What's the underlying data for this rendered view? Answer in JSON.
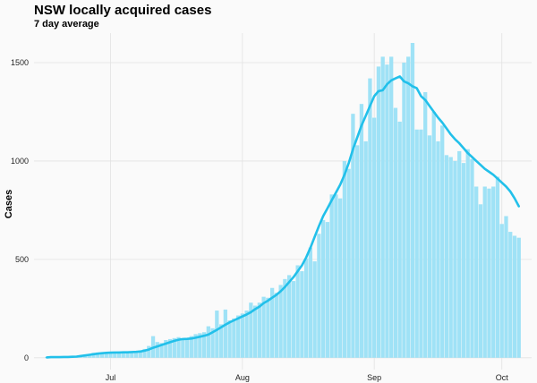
{
  "chart_data": {
    "type": "bar",
    "title": "NSW locally acquired cases",
    "subtitle": "7 day average",
    "xlabel": "",
    "ylabel": "Cases",
    "ylim": [
      -60,
      1650
    ],
    "xlim": [
      "2021-06-13",
      "2021-10-08"
    ],
    "grid": true,
    "colors": {
      "bars": "#9fe2f6",
      "line": "#22c0ea",
      "grid": "#e2e2e2",
      "background": "#fafafa"
    },
    "xticks": [
      {
        "date": "2021-07-01",
        "label": "Jul"
      },
      {
        "date": "2021-08-01",
        "label": "Aug"
      },
      {
        "date": "2021-09-01",
        "label": "Sep"
      },
      {
        "date": "2021-10-01",
        "label": "Oct"
      }
    ],
    "yticks": [
      0,
      500,
      1000,
      1500
    ],
    "start_date": "2021-06-16",
    "series": [
      {
        "name": "Cases",
        "values": [
          3,
          3,
          3,
          3,
          4,
          5,
          6,
          8,
          11,
          15,
          19,
          25,
          27,
          24,
          26,
          28,
          30,
          32,
          29,
          31,
          33,
          35,
          38,
          45,
          60,
          110,
          80,
          75,
          90,
          95,
          100,
          105,
          95,
          100,
          110,
          120,
          125,
          130,
          160,
          150,
          240,
          170,
          245,
          190,
          200,
          215,
          225,
          240,
          280,
          265,
          280,
          310,
          305,
          355,
          330,
          370,
          400,
          420,
          390,
          470,
          440,
          505,
          560,
          490,
          630,
          700,
          690,
          830,
          830,
          810,
          1000,
          960,
          1240,
          1080,
          1290,
          1100,
          1420,
          1220,
          1480,
          1530,
          1490,
          1530,
          1270,
          1200,
          1500,
          1530,
          1600,
          1160,
          1160,
          1350,
          1130,
          1250,
          1100,
          1180,
          1030,
          1020,
          1000,
          1050,
          990,
          1060,
          1010,
          870,
          780,
          870,
          860,
          870,
          920,
          680,
          720,
          640,
          620,
          610
        ],
        "avg": [
          2,
          3,
          3,
          3,
          4,
          4,
          5,
          6,
          9,
          12,
          15,
          18,
          21,
          23,
          25,
          26,
          27,
          27,
          28,
          28,
          29,
          30,
          32,
          36,
          42,
          51,
          58,
          65,
          72,
          79,
          86,
          92,
          95,
          96,
          98,
          102,
          107,
          112,
          118,
          130,
          142,
          155,
          168,
          180,
          190,
          200,
          210,
          220,
          232,
          247,
          260,
          278,
          290,
          305,
          320,
          338,
          360,
          385,
          410,
          440,
          470,
          510,
          560,
          615,
          670,
          720,
          760,
          800,
          840,
          880,
          930,
          990,
          1060,
          1120,
          1180,
          1230,
          1280,
          1330,
          1355,
          1360,
          1390,
          1410,
          1420,
          1430,
          1405,
          1395,
          1380,
          1370,
          1330,
          1310,
          1280,
          1250,
          1220,
          1195,
          1165,
          1135,
          1110,
          1090,
          1065,
          1040,
          1020,
          1000,
          980,
          960,
          945,
          930,
          910,
          890,
          870,
          845,
          810,
          770
        ]
      }
    ]
  }
}
